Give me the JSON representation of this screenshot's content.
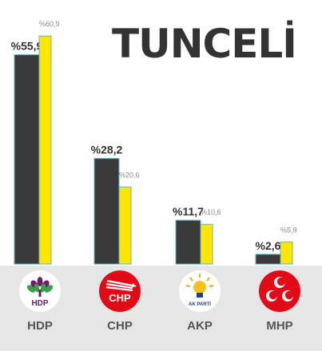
{
  "title": "TUNCELİ",
  "chart_data": {
    "type": "bar",
    "categories": [
      "HDP",
      "CHP",
      "AKP",
      "MHP"
    ],
    "series": [
      {
        "color": "#3a3a3a",
        "values": [
          55.9,
          28.2,
          11.7,
          2.6
        ],
        "labels": [
          "%55,9",
          "%28,2",
          "%11,7",
          "%2,6"
        ]
      },
      {
        "color": "#ffe600",
        "values": [
          60.9,
          20.6,
          10.6,
          5.9
        ],
        "labels": [
          "%60,9",
          "%20,6",
          "%10,6",
          "%5,9"
        ]
      }
    ],
    "ylim": [
      0,
      62
    ]
  },
  "parties": [
    {
      "name": "HDP",
      "logo_text": "HDP",
      "logo": "hdp-tree-logo"
    },
    {
      "name": "CHP",
      "logo_text": "CHP",
      "logo": "chp-six-arrows-logo"
    },
    {
      "name": "AKP",
      "logo_text": "AK PARTİ",
      "logo": "akp-lightbulb-logo"
    },
    {
      "name": "MHP",
      "logo_text": "",
      "logo": "mhp-three-crescents-logo"
    }
  ]
}
